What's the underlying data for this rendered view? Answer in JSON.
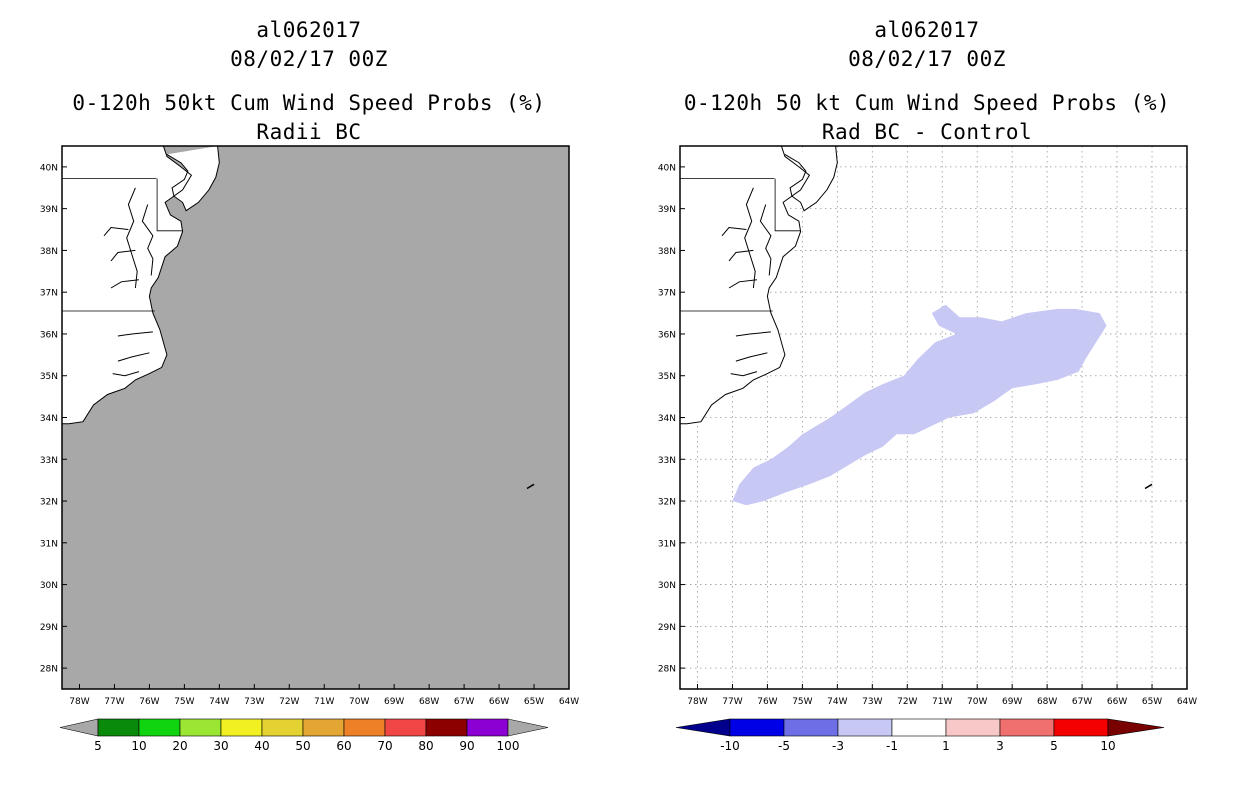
{
  "left": {
    "storm_id": "al062017",
    "datetime": "08/02/17 00Z",
    "title_line": "0-120h 50kt Cum Wind Speed Probs (%)",
    "subtitle": "Radii BC",
    "lat_labels": [
      "40N",
      "39N",
      "38N",
      "37N",
      "36N",
      "35N",
      "34N",
      "33N",
      "32N",
      "31N",
      "30N",
      "29N",
      "28N"
    ],
    "lon_labels": [
      "78W",
      "77W",
      "76W",
      "75W",
      "74W",
      "73W",
      "72W",
      "71W",
      "70W",
      "69W",
      "68W",
      "67W",
      "66W",
      "65W",
      "64W"
    ],
    "colorbar": {
      "labels": [
        "5",
        "10",
        "20",
        "30",
        "40",
        "50",
        "60",
        "70",
        "80",
        "90",
        "100"
      ],
      "colors": [
        "#0a8a0a",
        "#11d411",
        "#9ae632",
        "#f0f022",
        "#e3d232",
        "#e3a632",
        "#ee8028",
        "#f04646",
        "#8c0000",
        "#8c00d4"
      ],
      "end_color": "#a8a8a8"
    },
    "map_fill": "#a8a8a8"
  },
  "right": {
    "storm_id": "al062017",
    "datetime": "08/02/17 00Z",
    "title_line": "0-120h 50 kt Cum Wind Speed Probs (%)",
    "subtitle": "Rad BC - Control",
    "lat_labels": [
      "40N",
      "39N",
      "38N",
      "37N",
      "36N",
      "35N",
      "34N",
      "33N",
      "32N",
      "31N",
      "30N",
      "29N",
      "28N"
    ],
    "lon_labels": [
      "78W",
      "77W",
      "76W",
      "75W",
      "74W",
      "73W",
      "72W",
      "71W",
      "70W",
      "69W",
      "68W",
      "67W",
      "66W",
      "65W",
      "64W"
    ],
    "colorbar": {
      "labels": [
        "-10",
        "-5",
        "-3",
        "-1",
        "1",
        "3",
        "5",
        "10"
      ],
      "colors": [
        "#0000e6",
        "#6e6ee6",
        "#c8c8f5",
        "#ffffff",
        "#f8c8c8",
        "#f07070",
        "#f50000"
      ],
      "left_end": "#00008c",
      "right_end": "#780000"
    },
    "diff_fill": "#c8c8f5",
    "diff_polygon": [
      [
        -71.3,
        36.5
      ],
      [
        -70.9,
        36.7
      ],
      [
        -70.5,
        36.4
      ],
      [
        -69.9,
        36.4
      ],
      [
        -69.3,
        36.3
      ],
      [
        -68.6,
        36.5
      ],
      [
        -67.7,
        36.6
      ],
      [
        -67.2,
        36.6
      ],
      [
        -66.5,
        36.5
      ],
      [
        -66.3,
        36.2
      ],
      [
        -66.6,
        35.8
      ],
      [
        -66.9,
        35.4
      ],
      [
        -67.1,
        35.1
      ],
      [
        -67.7,
        34.9
      ],
      [
        -68.3,
        34.8
      ],
      [
        -69.0,
        34.7
      ],
      [
        -69.5,
        34.4
      ],
      [
        -70.1,
        34.1
      ],
      [
        -70.8,
        34.0
      ],
      [
        -71.3,
        33.8
      ],
      [
        -71.8,
        33.6
      ],
      [
        -72.3,
        33.6
      ],
      [
        -72.7,
        33.3
      ],
      [
        -73.2,
        33.1
      ],
      [
        -73.6,
        32.9
      ],
      [
        -74.2,
        32.6
      ],
      [
        -74.8,
        32.4
      ],
      [
        -75.5,
        32.2
      ],
      [
        -76.1,
        32.0
      ],
      [
        -76.6,
        31.9
      ],
      [
        -77.0,
        32.0
      ],
      [
        -76.8,
        32.4
      ],
      [
        -76.4,
        32.8
      ],
      [
        -75.9,
        33.0
      ],
      [
        -75.4,
        33.3
      ],
      [
        -75.0,
        33.6
      ],
      [
        -74.6,
        33.8
      ],
      [
        -74.2,
        34.0
      ],
      [
        -73.7,
        34.3
      ],
      [
        -73.2,
        34.6
      ],
      [
        -72.7,
        34.8
      ],
      [
        -72.1,
        35.0
      ],
      [
        -71.7,
        35.4
      ],
      [
        -71.2,
        35.8
      ],
      [
        -70.6,
        36.0
      ],
      [
        -71.1,
        36.2
      ]
    ]
  }
}
